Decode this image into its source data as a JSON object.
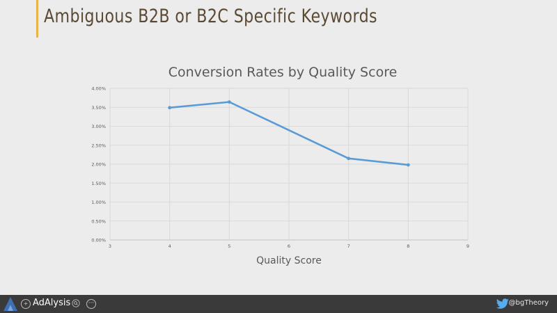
{
  "slide": {
    "title": "Ambiguous B2B or B2C Specific Keywords",
    "accent_color": "#e8b34a"
  },
  "chart_data": {
    "type": "line",
    "title": "Conversion Rates by Quality Score",
    "xlabel": "Quality Score",
    "ylabel": "",
    "xlim": [
      3,
      9
    ],
    "ylim": [
      0,
      0.04
    ],
    "x_ticks": [
      "3",
      "4",
      "5",
      "6",
      "7",
      "8",
      "9"
    ],
    "y_ticks": [
      "0.00%",
      "0.50%",
      "1.00%",
      "1.50%",
      "2.00%",
      "2.50%",
      "3.00%",
      "3.50%",
      "4.00%"
    ],
    "grid": true,
    "legend": "none",
    "series": [
      {
        "x": [
          4,
          5,
          7,
          8
        ],
        "y": [
          0.0349,
          0.0364,
          0.0215,
          0.0198
        ],
        "color": "#5b9bd5"
      }
    ]
  },
  "footer": {
    "brand": "AdAlysis",
    "twitter_handle": "@bgTheory",
    "icons": [
      "adalysis-logo-icon",
      "add-icon",
      "search-icon",
      "more-icon",
      "twitter-bird-icon"
    ]
  }
}
